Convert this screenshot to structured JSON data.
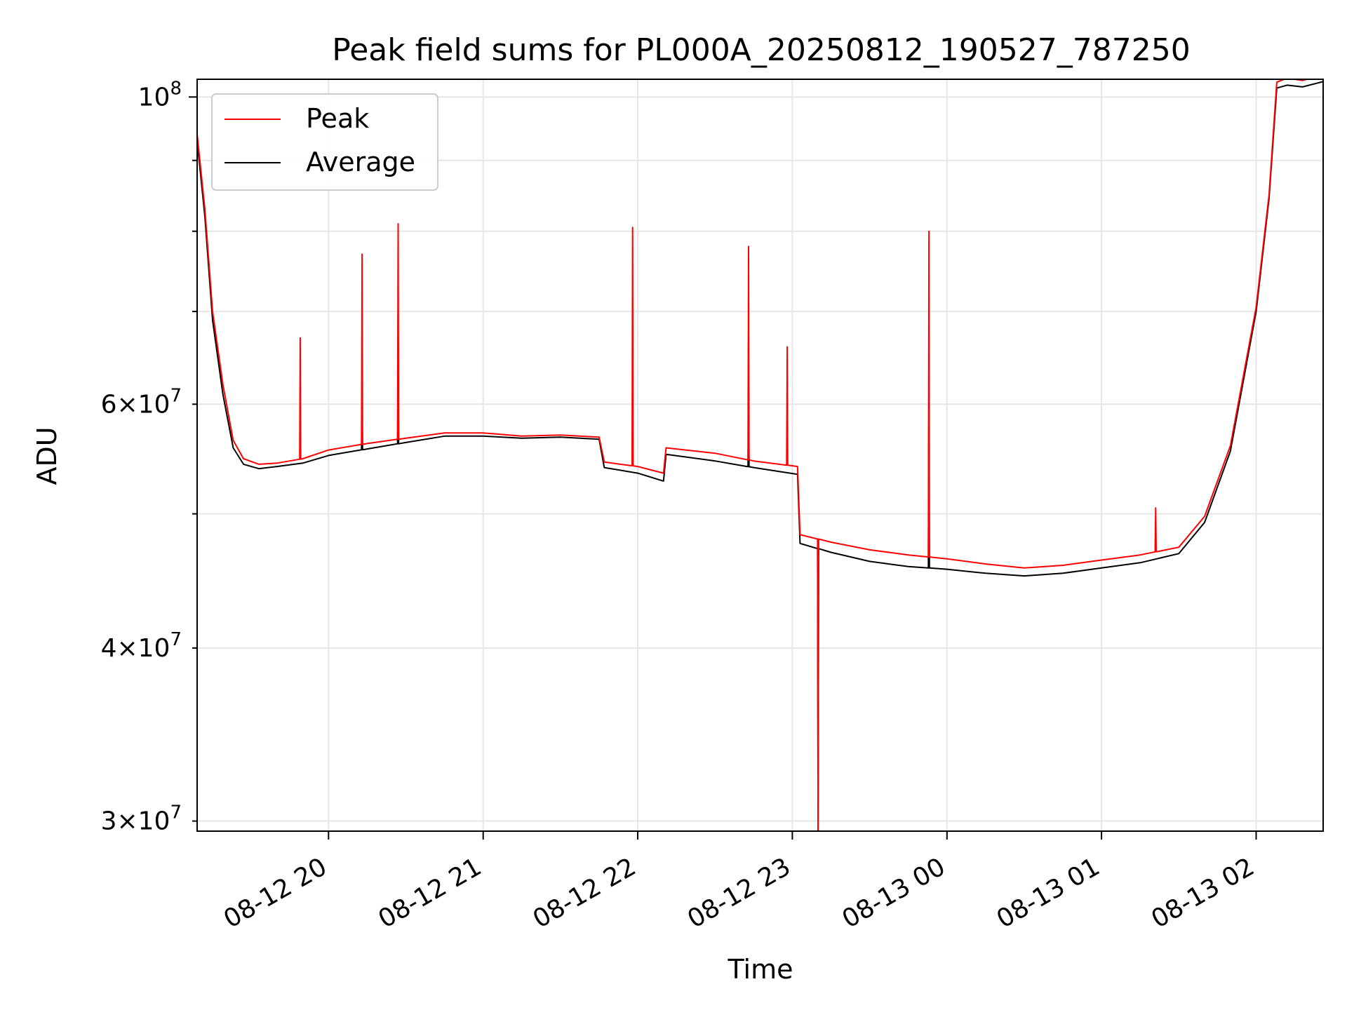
{
  "chart_data": {
    "type": "line",
    "title": "Peak field sums for PL000A_20250812_190527_787250",
    "xlabel": "Time",
    "ylabel": "ADU",
    "yscale": "log",
    "ylim": [
      29500000,
      103000000
    ],
    "xlim": [
      "08-12 19:09",
      "08-13 02:26"
    ],
    "grid": true,
    "legend_position": "upper-left",
    "x_tick_labels": [
      "08-12 20",
      "08-12 21",
      "08-12 22",
      "08-12 23",
      "08-13 00",
      "08-13 01",
      "08-13 02"
    ],
    "y_major_tick_labels": [
      {
        "value": 100000000,
        "mantissa": "10",
        "exponent": "8"
      }
    ],
    "y_minor_tick_labels": [
      {
        "value": 30000000,
        "mantissa": "3×10",
        "exponent": "7"
      },
      {
        "value": 40000000,
        "mantissa": "4×10",
        "exponent": "7"
      },
      {
        "value": 60000000,
        "mantissa": "6×10",
        "exponent": "7"
      }
    ],
    "series": [
      {
        "name": "Peak",
        "color": "#ff0000",
        "x": [
          "08-12 19:09",
          "08-12 19:12",
          "08-12 19:15",
          "08-12 19:19",
          "08-12 19:23",
          "08-12 19:27",
          "08-12 19:33",
          "08-12 19:40",
          "08-12 19:50",
          "08-12 20:00",
          "08-12 20:15",
          "08-12 20:30",
          "08-12 20:45",
          "08-12 21:00",
          "08-12 21:15",
          "08-12 21:30",
          "08-12 21:45",
          "08-12 21:47",
          "08-12 22:00",
          "08-12 22:10",
          "08-12 22:11",
          "08-12 22:30",
          "08-12 22:45",
          "08-12 23:02",
          "08-12 23:03",
          "08-12 23:15",
          "08-12 23:30",
          "08-12 23:45",
          "08-13 00:00",
          "08-13 00:15",
          "08-13 00:30",
          "08-13 00:45",
          "08-13 01:00",
          "08-13 01:15",
          "08-13 01:30",
          "08-13 01:40",
          "08-13 01:50",
          "08-13 02:00",
          "08-13 02:05",
          "08-13 02:08",
          "08-13 02:12",
          "08-13 02:18",
          "08-13 02:26"
        ],
        "values": [
          94000000,
          83000000,
          70000000,
          62000000,
          56500000,
          54800000,
          54300000,
          54400000,
          54800000,
          55600000,
          56200000,
          56700000,
          57200000,
          57200000,
          56900000,
          57000000,
          56800000,
          54500000,
          54100000,
          53500000,
          55800000,
          55300000,
          54600000,
          54100000,
          48300000,
          47700000,
          47100000,
          46700000,
          46400000,
          46000000,
          45700000,
          45900000,
          46300000,
          46700000,
          47300000,
          49800000,
          56000000,
          70500000,
          85000000,
          102500000,
          103200000,
          102800000,
          103800000
        ]
      },
      {
        "name": "Average",
        "color": "#000000",
        "x": [
          "08-12 19:09",
          "08-12 19:12",
          "08-12 19:15",
          "08-12 19:19",
          "08-12 19:23",
          "08-12 19:27",
          "08-12 19:33",
          "08-12 19:40",
          "08-12 19:50",
          "08-12 20:00",
          "08-12 20:15",
          "08-12 20:30",
          "08-12 20:45",
          "08-12 21:00",
          "08-12 21:15",
          "08-12 21:30",
          "08-12 21:45",
          "08-12 21:47",
          "08-12 22:00",
          "08-12 22:10",
          "08-12 22:11",
          "08-12 22:30",
          "08-12 22:45",
          "08-12 23:02",
          "08-12 23:03",
          "08-12 23:15",
          "08-12 23:30",
          "08-12 23:45",
          "08-13 00:00",
          "08-13 00:15",
          "08-13 00:30",
          "08-13 00:45",
          "08-13 01:00",
          "08-13 01:15",
          "08-13 01:30",
          "08-13 01:40",
          "08-13 01:50",
          "08-13 02:00",
          "08-13 02:05",
          "08-13 02:08",
          "08-13 02:12",
          "08-13 02:18",
          "08-13 02:26"
        ],
        "values": [
          93000000,
          82000000,
          69000000,
          61000000,
          55800000,
          54300000,
          53900000,
          54100000,
          54400000,
          55100000,
          55700000,
          56300000,
          56900000,
          56900000,
          56700000,
          56800000,
          56600000,
          54000000,
          53500000,
          52800000,
          55200000,
          54600000,
          54000000,
          53400000,
          47600000,
          46900000,
          46200000,
          45800000,
          45600000,
          45300000,
          45100000,
          45300000,
          45700000,
          46100000,
          46800000,
          49300000,
          55500000,
          70000000,
          84500000,
          101500000,
          102000000,
          101700000,
          102600000
        ]
      }
    ],
    "spikes": [
      {
        "series": "Peak",
        "x": "08-12 19:49",
        "value": 67000000
      },
      {
        "series": "Peak",
        "x": "08-12 20:13",
        "value": 77000000
      },
      {
        "series": "Average",
        "x": "08-12 20:13",
        "value": 60500000
      },
      {
        "series": "Peak",
        "x": "08-12 20:27",
        "value": 81000000
      },
      {
        "series": "Average",
        "x": "08-12 20:27",
        "value": 65500000
      },
      {
        "series": "Peak",
        "x": "08-12 21:58",
        "value": 80500000
      },
      {
        "series": "Peak",
        "x": "08-12 22:43",
        "value": 78000000
      },
      {
        "series": "Average",
        "x": "08-12 22:43",
        "value": 59000000
      },
      {
        "series": "Peak",
        "x": "08-12 22:58",
        "value": 66000000
      },
      {
        "series": "Peak",
        "x": "08-12 23:10",
        "value": 29500000
      },
      {
        "series": "Average",
        "x": "08-12 23:10",
        "value": 29500000
      },
      {
        "series": "Peak",
        "x": "08-12 23:53",
        "value": 80000000
      },
      {
        "series": "Average",
        "x": "08-12 23:53",
        "value": 61000000
      },
      {
        "series": "Peak",
        "x": "08-13 01:21",
        "value": 50500000
      }
    ]
  }
}
